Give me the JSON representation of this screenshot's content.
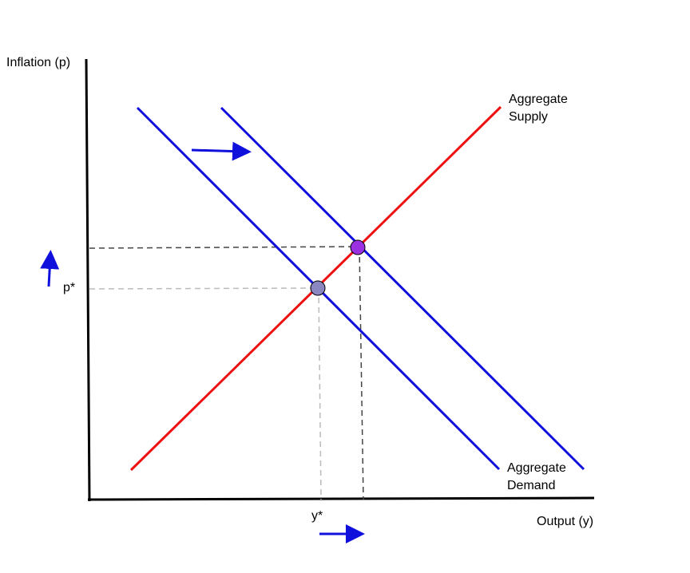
{
  "axes": {
    "y_label": "Inflation (p)",
    "x_label": "Output (y)"
  },
  "equilibrium_labels": {
    "price": "p*",
    "output": "y*"
  },
  "curves": {
    "supply_line1": "Aggregate",
    "supply_line2": "Supply",
    "demand_line1": "Aggregate",
    "demand_line2": "Demand"
  },
  "colors": {
    "demand": "#1010dd",
    "supply": "#ee1111",
    "axis": "#000000",
    "guide_dark": "#444444",
    "guide_light": "#bbbbbb",
    "new_equilibrium": "#9b30e0",
    "old_equilibrium": "#8a86c0",
    "arrow": "#1010dd"
  },
  "icons": {
    "shift_arrow": "arrow-right-icon",
    "price_arrow": "arrow-up-icon",
    "output_arrow": "arrow-right-icon"
  }
}
